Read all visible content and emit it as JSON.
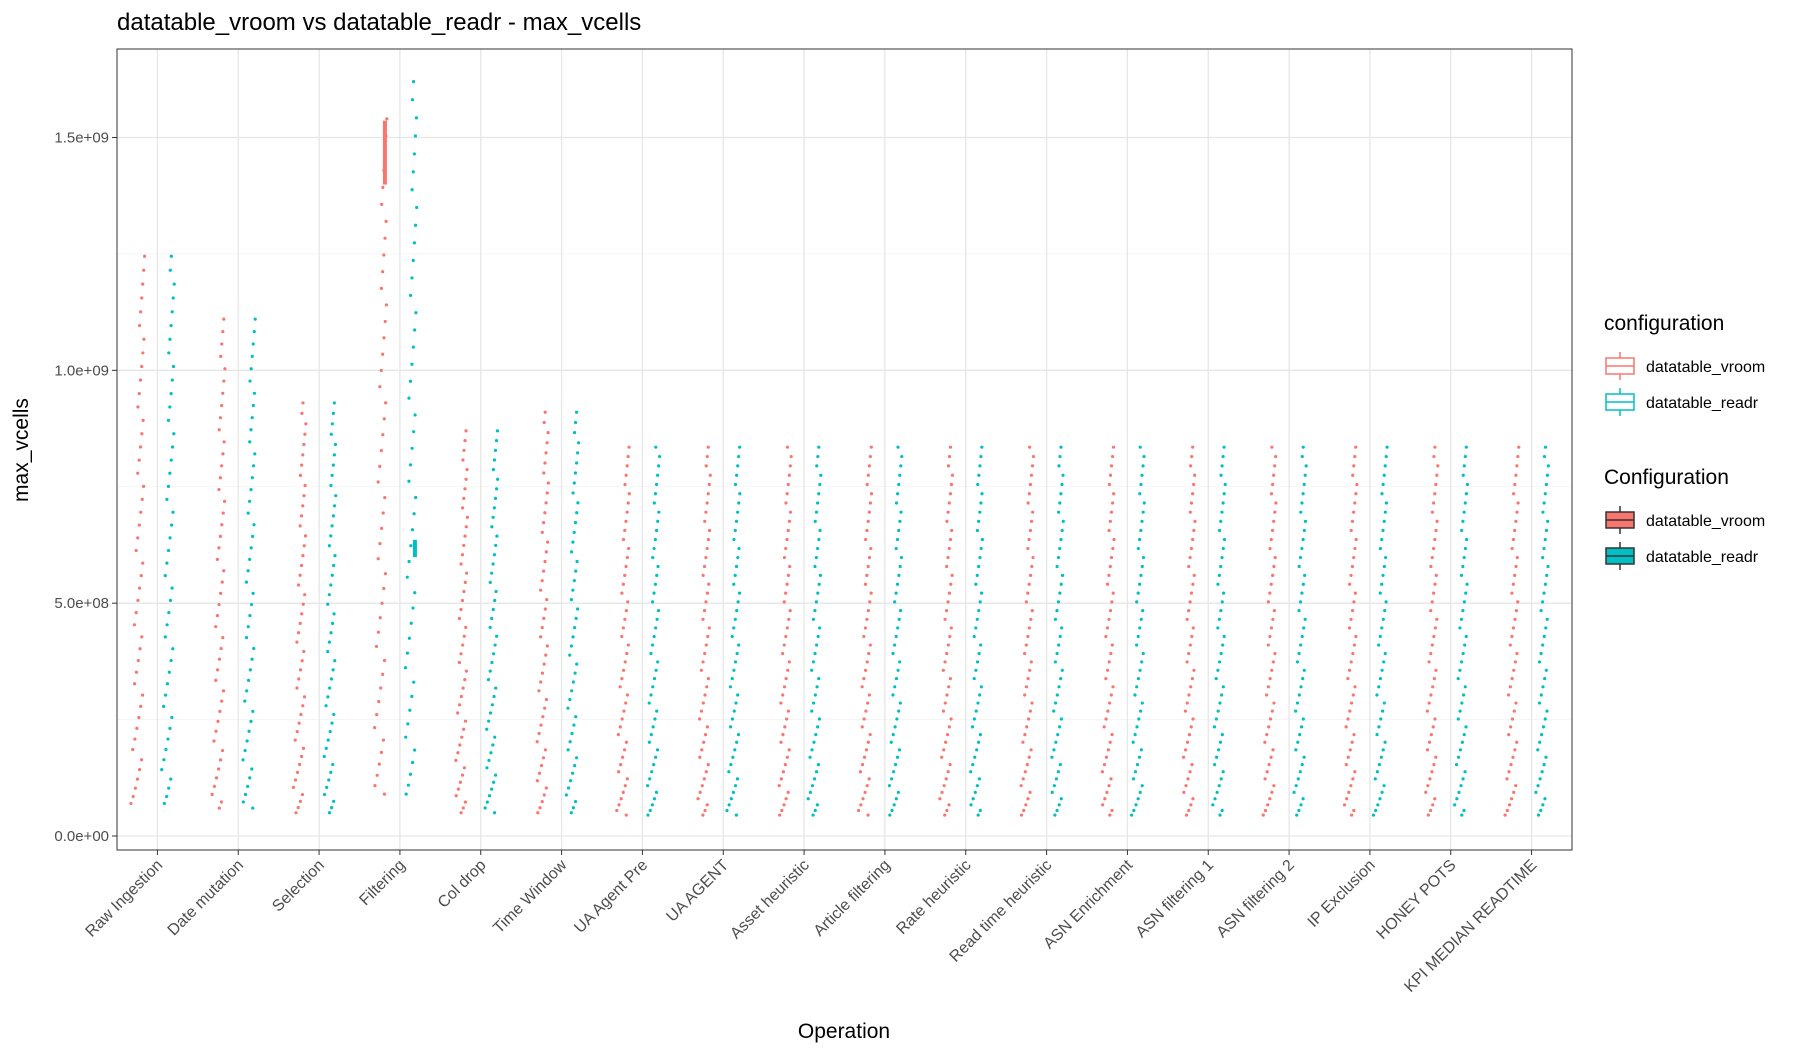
{
  "chart_data": {
    "type": "scatter",
    "title": "datatable_vroom vs datatable_readr - max_vcells",
    "xlabel": "Operation",
    "ylabel": "max_vcells",
    "ylim": [
      -30000000,
      1690000000
    ],
    "y_ticks": [
      0,
      250000000,
      500000000,
      750000000,
      1000000000,
      1250000000,
      1500000000
    ],
    "y_tick_labels": [
      "0.0e+00",
      "",
      "5.0e+08",
      "",
      "1.0e+09",
      "",
      "1.5e+09"
    ],
    "grid": true,
    "legend_position": "right",
    "categories": [
      "Raw Ingestion",
      "Date mutation",
      "Selection",
      "Filtering",
      "Col drop",
      "Time Window",
      "UA Agent Pre",
      "UA AGENT",
      "Asset heuristic",
      "Article filtering",
      "Rate heuristic",
      "Read time heuristic",
      "ASN Enrichment",
      "ASN filtering 1",
      "ASN filtering 2",
      "IP Exclusion",
      "HONEY POTS",
      "KPI MEDIAN READTIME"
    ],
    "series": [
      {
        "name": "datatable_vroom",
        "color": "#F8766D",
        "min": [
          70000000,
          60000000,
          50000000,
          90000000,
          50000000,
          50000000,
          45000000,
          45000000,
          45000000,
          45000000,
          45000000,
          45000000,
          45000000,
          45000000,
          45000000,
          45000000,
          45000000,
          45000000
        ],
        "max": [
          1245000000,
          1110000000,
          930000000,
          1540000000,
          870000000,
          910000000,
          835000000,
          835000000,
          835000000,
          835000000,
          835000000,
          835000000,
          835000000,
          835000000,
          835000000,
          835000000,
          835000000,
          835000000
        ],
        "box_q1": [
          null,
          null,
          null,
          1400000000,
          null,
          null,
          null,
          null,
          null,
          null,
          null,
          null,
          null,
          null,
          null,
          null,
          null,
          null
        ],
        "box_q3": [
          null,
          null,
          null,
          1535000000,
          null,
          null,
          null,
          null,
          null,
          null,
          null,
          null,
          null,
          null,
          null,
          null,
          null,
          null
        ]
      },
      {
        "name": "datatable_readr",
        "color": "#00BFC4",
        "min": [
          70000000,
          60000000,
          50000000,
          90000000,
          50000000,
          50000000,
          45000000,
          45000000,
          45000000,
          45000000,
          45000000,
          45000000,
          45000000,
          45000000,
          45000000,
          45000000,
          45000000,
          45000000
        ],
        "max": [
          1245000000,
          1110000000,
          930000000,
          1620000000,
          870000000,
          910000000,
          835000000,
          835000000,
          835000000,
          835000000,
          835000000,
          835000000,
          835000000,
          835000000,
          835000000,
          835000000,
          835000000,
          835000000
        ],
        "box_q1": [
          null,
          null,
          null,
          600000000,
          null,
          null,
          null,
          null,
          null,
          null,
          null,
          null,
          null,
          null,
          null,
          null,
          null,
          null
        ],
        "box_q3": [
          null,
          null,
          null,
          635000000,
          null,
          null,
          null,
          null,
          null,
          null,
          null,
          null,
          null,
          null,
          null,
          null,
          null,
          null
        ]
      }
    ]
  },
  "legend": {
    "groups": [
      {
        "title": "configuration",
        "style": "outline",
        "items": [
          "datatable_vroom",
          "datatable_readr"
        ]
      },
      {
        "title": "Configuration",
        "style": "filled",
        "items": [
          "datatable_vroom",
          "datatable_readr"
        ]
      }
    ]
  }
}
